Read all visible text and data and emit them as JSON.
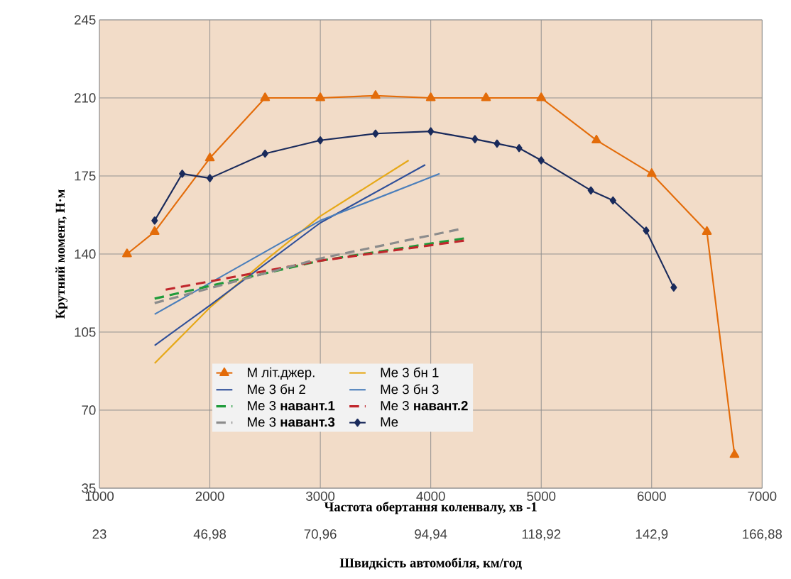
{
  "chart_data": {
    "type": "line",
    "xlabel": "Частота обертання коленвалу, хв -1",
    "ylabel": "Крутний момент, Н·м",
    "x2label": "Швидкість автомобіля, км/год",
    "xlim": [
      1000,
      7000
    ],
    "xticks": [
      1000,
      2000,
      3000,
      4000,
      5000,
      6000,
      7000
    ],
    "ylim": [
      35,
      245
    ],
    "yticks": [
      35,
      70,
      105,
      140,
      175,
      210,
      245
    ],
    "x2lim": [
      23,
      166.88
    ],
    "x2ticks": [
      23,
      {
        "value": 46.98,
        "label": "46,98"
      },
      {
        "value": 70.96,
        "label": "70,96"
      },
      {
        "value": 94.94,
        "label": "94,94"
      },
      {
        "value": 118.92,
        "label": "118,92"
      },
      {
        "value": 142.9,
        "label": "142,9"
      },
      {
        "value": 166.88,
        "label": "166,88"
      }
    ],
    "grid": true,
    "legend": "bottom",
    "series": [
      {
        "name": "М літ.джер.",
        "color": "#e36c0a",
        "marker": "triangle",
        "line_style": "solid",
        "x": [
          1250,
          1500,
          2000,
          2500,
          3000,
          3500,
          4000,
          4500,
          5000,
          5500,
          6000,
          6500,
          6750
        ],
        "values": [
          140,
          150,
          183,
          210,
          210,
          211,
          210,
          210,
          210,
          191,
          176,
          150,
          50
        ]
      },
      {
        "name": "Me 3 бн 1",
        "color": "#e6a817",
        "marker": "none",
        "line_style": "solid",
        "x": [
          1500,
          2000,
          2500,
          3000,
          3800
        ],
        "values": [
          91,
          116,
          137,
          157,
          182
        ]
      },
      {
        "name": "Me 3 бн 2",
        "color": "#2f4f99",
        "marker": "none",
        "line_style": "solid",
        "x": [
          1500,
          2000,
          3000,
          3950
        ],
        "values": [
          99,
          117,
          154,
          180
        ]
      },
      {
        "name": "Me 3 бн 3",
        "color": "#4a7ebb",
        "marker": "none",
        "line_style": "solid",
        "x": [
          1500,
          3000,
          4080
        ],
        "values": [
          113,
          155,
          176
        ]
      },
      {
        "name": "Me 3 **навант.1**",
        "color": "#1f9b3a",
        "marker": "none",
        "line_style": "dashed",
        "x": [
          1500,
          3000,
          4300
        ],
        "values": [
          120,
          137,
          147
        ]
      },
      {
        "name": "Me 3 **навант.2**",
        "color": "#c0262c",
        "marker": "none",
        "line_style": "dashed",
        "x": [
          1600,
          3000,
          4300
        ],
        "values": [
          124,
          137,
          146
        ]
      },
      {
        "name": "Me 3 **навант.3**",
        "color": "#8c8c8c",
        "marker": "none",
        "line_style": "dashed",
        "x": [
          1500,
          3000,
          4250
        ],
        "values": [
          118,
          138,
          151
        ]
      },
      {
        "name": "Me",
        "color": "#1a2b5c",
        "marker": "diamond",
        "line_style": "solid",
        "x": [
          1500,
          1750,
          2000,
          2500,
          3000,
          3500,
          4000,
          4400,
          4600,
          4800,
          5000,
          5450,
          5650,
          5950,
          6200
        ],
        "values": [
          155,
          176,
          174,
          185,
          191,
          194,
          195,
          191.5,
          189.5,
          187.5,
          182,
          168.5,
          164,
          150.5,
          125
        ]
      }
    ]
  }
}
